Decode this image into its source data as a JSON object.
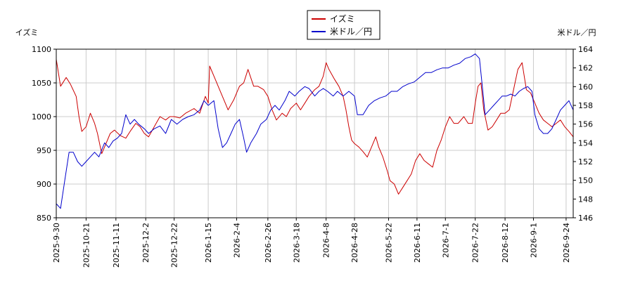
{
  "chart_data": {
    "type": "line",
    "legend_position": "top-center",
    "grid": true,
    "left_axis": {
      "title": "イズミ",
      "range": [
        850,
        1100
      ],
      "ticks": [
        850,
        900,
        950,
        1000,
        1050,
        1100
      ]
    },
    "right_axis": {
      "title": "米ドル／円",
      "range": [
        146,
        164
      ],
      "ticks": [
        146,
        148,
        150,
        152,
        154,
        156,
        158,
        160,
        162,
        164
      ]
    },
    "x_dates": [
      "2025-9-30",
      "2025-10-21",
      "2025-11-11",
      "2025-12-2",
      "2025-12-22",
      "2026-1-15",
      "2026-2-4",
      "2026-2-26",
      "2026-3-18",
      "2026-4-8",
      "2026-4-28",
      "2026-5-22",
      "2026-6-11",
      "2026-7-1",
      "2026-7-22",
      "2026-8-12",
      "2026-9-1",
      "2026-9-24"
    ],
    "x_range": [
      "2025-9-30",
      "2026-9-29"
    ],
    "series": [
      {
        "name": "イズミ",
        "color": "#cc0000",
        "axis": "left",
        "points": [
          [
            "2025-9-30",
            1085
          ],
          [
            "2025-10-3",
            1045
          ],
          [
            "2025-10-7",
            1058
          ],
          [
            "2025-10-10",
            1048
          ],
          [
            "2025-10-14",
            1030
          ],
          [
            "2025-10-16",
            1000
          ],
          [
            "2025-10-18",
            978
          ],
          [
            "2025-10-21",
            985
          ],
          [
            "2025-10-24",
            1005
          ],
          [
            "2025-10-27",
            990
          ],
          [
            "2025-10-29",
            975
          ],
          [
            "2025-11-1",
            945
          ],
          [
            "2025-11-4",
            960
          ],
          [
            "2025-11-7",
            975
          ],
          [
            "2025-11-10",
            980
          ],
          [
            "2025-11-14",
            972
          ],
          [
            "2025-11-18",
            968
          ],
          [
            "2025-11-21",
            978
          ],
          [
            "2025-11-25",
            990
          ],
          [
            "2025-11-28",
            985
          ],
          [
            "2025-12-1",
            975
          ],
          [
            "2025-12-4",
            970
          ],
          [
            "2025-12-8",
            985
          ],
          [
            "2025-12-12",
            1000
          ],
          [
            "2025-12-16",
            995
          ],
          [
            "2025-12-19",
            1000
          ],
          [
            "2025-12-22",
            1000
          ],
          [
            "2025-12-26",
            998
          ],
          [
            "2025-12-30",
            1005
          ],
          [
            "2026-1-5",
            1012
          ],
          [
            "2026-1-9",
            1005
          ],
          [
            "2026-1-13",
            1030
          ],
          [
            "2026-1-15",
            1020
          ],
          [
            "2026-1-16",
            1075
          ],
          [
            "2026-1-20",
            1055
          ],
          [
            "2026-1-23",
            1040
          ],
          [
            "2026-1-27",
            1020
          ],
          [
            "2026-1-29",
            1010
          ],
          [
            "2026-2-2",
            1025
          ],
          [
            "2026-2-4",
            1035
          ],
          [
            "2026-2-6",
            1045
          ],
          [
            "2026-2-9",
            1050
          ],
          [
            "2026-2-12",
            1070
          ],
          [
            "2026-2-16",
            1045
          ],
          [
            "2026-2-19",
            1045
          ],
          [
            "2026-2-23",
            1040
          ],
          [
            "2026-2-26",
            1030
          ],
          [
            "2026-3-1",
            1010
          ],
          [
            "2026-3-4",
            995
          ],
          [
            "2026-3-8",
            1005
          ],
          [
            "2026-3-11",
            1000
          ],
          [
            "2026-3-14",
            1012
          ],
          [
            "2026-3-18",
            1020
          ],
          [
            "2026-3-21",
            1010
          ],
          [
            "2026-3-24",
            1020
          ],
          [
            "2026-3-27",
            1030
          ],
          [
            "2026-3-31",
            1040
          ],
          [
            "2026-4-3",
            1045
          ],
          [
            "2026-4-6",
            1060
          ],
          [
            "2026-4-8",
            1080
          ],
          [
            "2026-4-10",
            1070
          ],
          [
            "2026-4-14",
            1055
          ],
          [
            "2026-4-17",
            1045
          ],
          [
            "2026-4-20",
            1030
          ],
          [
            "2026-4-22",
            1010
          ],
          [
            "2026-4-24",
            985
          ],
          [
            "2026-4-26",
            965
          ],
          [
            "2026-4-28",
            960
          ],
          [
            "2026-5-1",
            955
          ],
          [
            "2026-5-4",
            948
          ],
          [
            "2026-5-7",
            940
          ],
          [
            "2026-5-10",
            955
          ],
          [
            "2026-5-13",
            970
          ],
          [
            "2026-5-15",
            955
          ],
          [
            "2026-5-18",
            940
          ],
          [
            "2026-5-21",
            920
          ],
          [
            "2026-5-23",
            905
          ],
          [
            "2026-5-26",
            900
          ],
          [
            "2026-5-29",
            885
          ],
          [
            "2026-6-1",
            895
          ],
          [
            "2026-6-4",
            905
          ],
          [
            "2026-6-7",
            915
          ],
          [
            "2026-6-10",
            935
          ],
          [
            "2026-6-13",
            945
          ],
          [
            "2026-6-16",
            935
          ],
          [
            "2026-6-19",
            930
          ],
          [
            "2026-6-22",
            925
          ],
          [
            "2026-6-25",
            950
          ],
          [
            "2026-6-28",
            965
          ],
          [
            "2026-7-1",
            985
          ],
          [
            "2026-7-4",
            1000
          ],
          [
            "2026-7-7",
            990
          ],
          [
            "2026-7-10",
            990
          ],
          [
            "2026-7-14",
            1000
          ],
          [
            "2026-7-17",
            990
          ],
          [
            "2026-7-20",
            990
          ],
          [
            "2026-7-22",
            1020
          ],
          [
            "2026-7-24",
            1045
          ],
          [
            "2026-7-26",
            1050
          ],
          [
            "2026-7-28",
            1010
          ],
          [
            "2026-7-31",
            980
          ],
          [
            "2026-8-3",
            985
          ],
          [
            "2026-8-6",
            995
          ],
          [
            "2026-8-9",
            1005
          ],
          [
            "2026-8-12",
            1005
          ],
          [
            "2026-8-15",
            1010
          ],
          [
            "2026-8-18",
            1040
          ],
          [
            "2026-8-21",
            1070
          ],
          [
            "2026-8-24",
            1080
          ],
          [
            "2026-8-27",
            1040
          ],
          [
            "2026-8-30",
            1035
          ],
          [
            "2026-9-2",
            1020
          ],
          [
            "2026-9-5",
            1005
          ],
          [
            "2026-9-8",
            995
          ],
          [
            "2026-9-11",
            990
          ],
          [
            "2026-9-14",
            985
          ],
          [
            "2026-9-17",
            990
          ],
          [
            "2026-9-20",
            995
          ],
          [
            "2026-9-23",
            985
          ],
          [
            "2026-9-26",
            978
          ],
          [
            "2026-9-29",
            970
          ]
        ]
      },
      {
        "name": "米ドル／円",
        "color": "#0000cc",
        "axis": "right",
        "points": [
          [
            "2025-9-30",
            147.5
          ],
          [
            "2025-10-3",
            147.0
          ],
          [
            "2025-10-6",
            150.0
          ],
          [
            "2025-10-9",
            153.0
          ],
          [
            "2025-10-12",
            153.0
          ],
          [
            "2025-10-15",
            152.0
          ],
          [
            "2025-10-18",
            151.5
          ],
          [
            "2025-10-21",
            152.0
          ],
          [
            "2025-10-24",
            152.5
          ],
          [
            "2025-10-27",
            153.0
          ],
          [
            "2025-10-30",
            152.5
          ],
          [
            "2025-11-3",
            154.0
          ],
          [
            "2025-11-6",
            153.5
          ],
          [
            "2025-11-9",
            154.2
          ],
          [
            "2025-11-12",
            154.5
          ],
          [
            "2025-11-15",
            155.0
          ],
          [
            "2025-11-18",
            157.0
          ],
          [
            "2025-11-21",
            156.0
          ],
          [
            "2025-11-24",
            156.5
          ],
          [
            "2025-11-27",
            156.0
          ],
          [
            "2025-12-1",
            155.5
          ],
          [
            "2025-12-4",
            155.0
          ],
          [
            "2025-12-8",
            155.5
          ],
          [
            "2025-12-12",
            155.8
          ],
          [
            "2025-12-16",
            155.0
          ],
          [
            "2025-12-20",
            156.5
          ],
          [
            "2025-12-24",
            156.0
          ],
          [
            "2025-12-28",
            156.5
          ],
          [
            "2026-1-1",
            156.8
          ],
          [
            "2026-1-5",
            157.0
          ],
          [
            "2026-1-9",
            157.5
          ],
          [
            "2026-1-12",
            158.5
          ],
          [
            "2026-1-15",
            158.0
          ],
          [
            "2026-1-19",
            158.5
          ],
          [
            "2026-1-22",
            155.5
          ],
          [
            "2026-1-25",
            153.5
          ],
          [
            "2026-1-28",
            154.0
          ],
          [
            "2026-1-31",
            155.0
          ],
          [
            "2026-2-3",
            156.0
          ],
          [
            "2026-2-6",
            156.5
          ],
          [
            "2026-2-9",
            154.5
          ],
          [
            "2026-2-11",
            153.0
          ],
          [
            "2026-2-14",
            154.0
          ],
          [
            "2026-2-18",
            155.0
          ],
          [
            "2026-2-21",
            156.0
          ],
          [
            "2026-2-25",
            156.5
          ],
          [
            "2026-2-28",
            157.5
          ],
          [
            "2026-3-3",
            158.0
          ],
          [
            "2026-3-6",
            157.5
          ],
          [
            "2026-3-10",
            158.5
          ],
          [
            "2026-3-13",
            159.5
          ],
          [
            "2026-3-17",
            159.0
          ],
          [
            "2026-3-20",
            159.5
          ],
          [
            "2026-3-24",
            160.0
          ],
          [
            "2026-3-27",
            159.8
          ],
          [
            "2026-3-31",
            159.0
          ],
          [
            "2026-4-3",
            159.5
          ],
          [
            "2026-4-6",
            159.8
          ],
          [
            "2026-4-9",
            159.5
          ],
          [
            "2026-4-13",
            159.0
          ],
          [
            "2026-4-16",
            159.5
          ],
          [
            "2026-4-20",
            159.0
          ],
          [
            "2026-4-24",
            159.5
          ],
          [
            "2026-4-28",
            159.0
          ],
          [
            "2026-4-30",
            157.0
          ],
          [
            "2026-5-4",
            157.0
          ],
          [
            "2026-5-8",
            158.0
          ],
          [
            "2026-5-12",
            158.5
          ],
          [
            "2026-5-16",
            158.8
          ],
          [
            "2026-5-20",
            159.0
          ],
          [
            "2026-5-24",
            159.5
          ],
          [
            "2026-5-28",
            159.5
          ],
          [
            "2026-6-1",
            160.0
          ],
          [
            "2026-6-5",
            160.3
          ],
          [
            "2026-6-9",
            160.5
          ],
          [
            "2026-6-13",
            161.0
          ],
          [
            "2026-6-17",
            161.5
          ],
          [
            "2026-6-21",
            161.5
          ],
          [
            "2026-6-25",
            161.8
          ],
          [
            "2026-6-29",
            162.0
          ],
          [
            "2026-7-3",
            162.0
          ],
          [
            "2026-7-7",
            162.3
          ],
          [
            "2026-7-11",
            162.5
          ],
          [
            "2026-7-15",
            163.0
          ],
          [
            "2026-7-19",
            163.2
          ],
          [
            "2026-7-22",
            163.5
          ],
          [
            "2026-7-25",
            163.0
          ],
          [
            "2026-7-27",
            160.0
          ],
          [
            "2026-7-29",
            157.0
          ],
          [
            "2026-8-1",
            157.5
          ],
          [
            "2026-8-4",
            158.0
          ],
          [
            "2026-8-7",
            158.5
          ],
          [
            "2026-8-10",
            159.0
          ],
          [
            "2026-8-13",
            159.0
          ],
          [
            "2026-8-16",
            159.2
          ],
          [
            "2026-8-19",
            159.0
          ],
          [
            "2026-8-22",
            159.5
          ],
          [
            "2026-8-25",
            159.8
          ],
          [
            "2026-8-28",
            160.0
          ],
          [
            "2026-8-31",
            159.5
          ],
          [
            "2026-9-2",
            157.0
          ],
          [
            "2026-9-5",
            155.5
          ],
          [
            "2026-9-8",
            155.0
          ],
          [
            "2026-9-11",
            155.0
          ],
          [
            "2026-9-14",
            155.5
          ],
          [
            "2026-9-17",
            156.5
          ],
          [
            "2026-9-20",
            157.5
          ],
          [
            "2026-9-23",
            158.0
          ],
          [
            "2026-9-26",
            158.5
          ],
          [
            "2026-9-29",
            157.5
          ]
        ]
      }
    ]
  }
}
